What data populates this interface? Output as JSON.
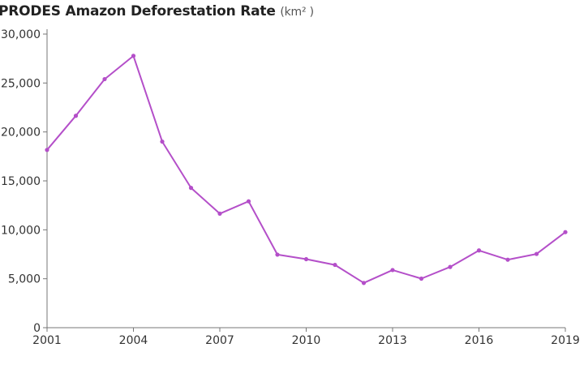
{
  "chart_data": {
    "type": "line",
    "title": "PRODES Amazon Deforestation Rate",
    "unit": "(km² )",
    "xlabel": "",
    "ylabel": "",
    "x": [
      2001,
      2002,
      2003,
      2004,
      2005,
      2006,
      2007,
      2008,
      2009,
      2010,
      2011,
      2012,
      2013,
      2014,
      2015,
      2016,
      2017,
      2018,
      2019
    ],
    "series": [
      {
        "values": [
          18165,
          21651,
          25396,
          27772,
          19014,
          14286,
          11651,
          12911,
          7464,
          7000,
          6418,
          4571,
          5891,
          5012,
          6207,
          7893,
          6947,
          7536,
          9762
        ]
      }
    ],
    "x_ticks": [
      "2001",
      "2004",
      "2007",
      "2010",
      "2013",
      "2016",
      "2019"
    ],
    "y_ticks": [
      "0",
      "5,000",
      "10,000",
      "15,000",
      "20,000",
      "25,000",
      "30,000"
    ],
    "xlim": [
      2001,
      2019
    ],
    "ylim": [
      0,
      30000
    ],
    "grid": false,
    "line_color": "#b44fc9"
  }
}
